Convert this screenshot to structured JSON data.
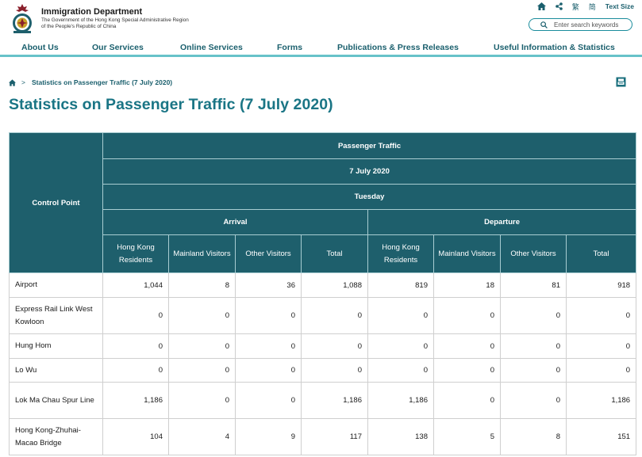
{
  "header": {
    "dept_name": "Immigration Department",
    "dept_sub1": "The Government of the Hong Kong Special Administrative Region",
    "dept_sub2": "of the People's Republic of China",
    "icons": [
      "home-icon",
      "share-icon",
      "traditional-chinese-link",
      "simplified-chinese-link"
    ],
    "lang_traditional": "繁",
    "lang_simplified": "简",
    "text_size": "Text Size",
    "search_placeholder": "Enter search keywords"
  },
  "nav": {
    "items": [
      "About Us",
      "Our Services",
      "Online Services",
      "Forms",
      "Publications & Press Releases",
      "Useful Information & Statistics"
    ]
  },
  "breadcrumb": {
    "separator": ">",
    "current": "Statistics on Passenger Traffic (7 July 2020)"
  },
  "page_title": "Statistics on Passenger Traffic (7 July 2020)",
  "table": {
    "control_point_header": "Control Point",
    "group_header": "Passenger Traffic",
    "date": "7 July 2020",
    "day": "Tuesday",
    "arrival": "Arrival",
    "departure": "Departure",
    "sub_headers": [
      "Hong Kong Residents",
      "Mainland Visitors",
      "Other Visitors",
      "Total",
      "Hong Kong Residents",
      "Mainland Visitors",
      "Other Visitors",
      "Total"
    ],
    "rows": [
      {
        "name": "Airport",
        "values": [
          "1,044",
          "8",
          "36",
          "1,088",
          "819",
          "18",
          "81",
          "918"
        ]
      },
      {
        "name": "Express Rail Link West Kowloon",
        "values": [
          "0",
          "0",
          "0",
          "0",
          "0",
          "0",
          "0",
          "0"
        ]
      },
      {
        "name": "Hung Hom",
        "values": [
          "0",
          "0",
          "0",
          "0",
          "0",
          "0",
          "0",
          "0"
        ]
      },
      {
        "name": "Lo Wu",
        "values": [
          "0",
          "0",
          "0",
          "0",
          "0",
          "0",
          "0",
          "0"
        ]
      },
      {
        "name": "Lok Ma Chau Spur Line",
        "values": [
          "1,186",
          "0",
          "0",
          "1,186",
          "1,186",
          "0",
          "0",
          "1,186"
        ]
      },
      {
        "name": "Hong Kong-Zhuhai-Macao Bridge",
        "values": [
          "104",
          "4",
          "9",
          "117",
          "138",
          "5",
          "8",
          "151"
        ]
      }
    ]
  },
  "colors": {
    "header_bg": "#1e5f6c",
    "title": "#1a7585",
    "nav_text": "#1a5f6d",
    "nav_rule": "#67c2c9"
  }
}
